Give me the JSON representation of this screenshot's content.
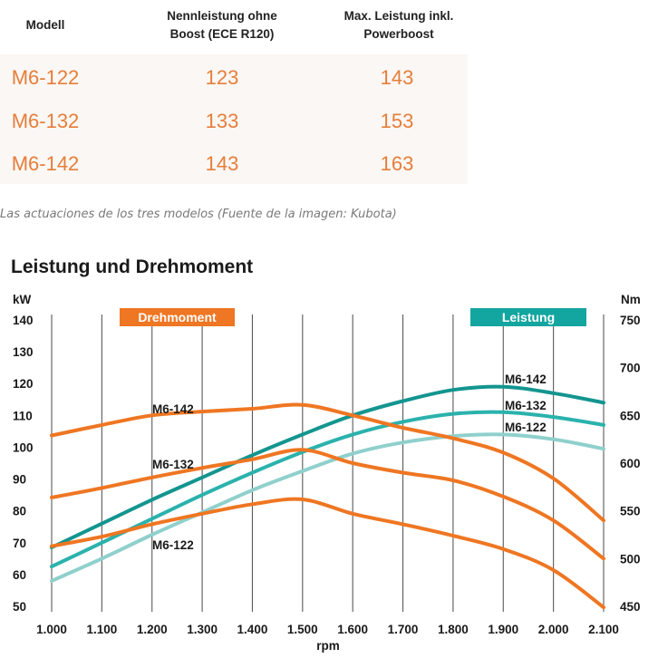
{
  "table": {
    "headers": [
      "Modell",
      "Nennleistung ohne Boost (ECE R120)",
      "Max. Leistung inkl. Powerboost"
    ],
    "header_lines": [
      [
        "Modell"
      ],
      [
        "Nennleistung ohne",
        "Boost (ECE R120)"
      ],
      [
        "Max. Leistung inkl.",
        "Powerboost"
      ]
    ],
    "rows": [
      [
        "M6-122",
        "123",
        "143"
      ],
      [
        "M6-132",
        "133",
        "153"
      ],
      [
        "M6-142",
        "143",
        "163"
      ]
    ]
  },
  "caption": "Las actuaciones de los tres modelos (Fuente de la imagen: Kubota)",
  "colors": {
    "torque": "#ef7622",
    "power_dark": "#13958f",
    "power_mid": "#2bb2ad",
    "power_light": "#8fd0cc",
    "value_text": "#e67e3a"
  },
  "chart_data": {
    "type": "line",
    "title": "Leistung und Drehmoment",
    "xlabel": "rpm",
    "ylabel_left": "kW",
    "ylabel_right": "Nm",
    "x": [
      1000,
      1100,
      1200,
      1300,
      1400,
      1500,
      1600,
      1700,
      1800,
      1900,
      2000,
      2100
    ],
    "x_tick_labels": [
      "1.000",
      "1.100",
      "1.200",
      "1.300",
      "1.400",
      "1.500",
      "1.600",
      "1.700",
      "1.800",
      "1.900",
      "2.000",
      "2.100"
    ],
    "xlim": [
      1000,
      2100
    ],
    "ylim_left": [
      50,
      140
    ],
    "y_left_ticks": [
      50,
      60,
      70,
      80,
      90,
      100,
      110,
      120,
      130,
      140
    ],
    "ylim_right": [
      450,
      750
    ],
    "y_right_ticks": [
      450,
      500,
      550,
      600,
      650,
      700,
      750
    ],
    "legend": [
      {
        "label": "Drehmoment",
        "color": "#ef7622",
        "placement": "top-left"
      },
      {
        "label": "Leistung",
        "color": "#13a5a0",
        "placement": "top-right"
      }
    ],
    "series": [
      {
        "name": "M6-142",
        "group": "Leistung",
        "axis": "left",
        "color": "#13958f",
        "label": "M6-142",
        "values": [
          68.5,
          76,
          83.5,
          90.5,
          97.5,
          104,
          110,
          114.5,
          118,
          119,
          117,
          114
        ]
      },
      {
        "name": "M6-132",
        "group": "Leistung",
        "axis": "left",
        "color": "#2bb2ad",
        "label": "M6-132",
        "values": [
          62.5,
          70,
          77.5,
          85,
          92,
          98.5,
          104,
          108,
          110.5,
          111,
          109.5,
          107
        ]
      },
      {
        "name": "M6-122",
        "group": "Leistung",
        "axis": "left",
        "color": "#8fd0cc",
        "label": "M6-122",
        "values": [
          58,
          65,
          72.5,
          79.5,
          86.5,
          92.5,
          98,
          101.5,
          103.5,
          104,
          102.5,
          99.5
        ]
      },
      {
        "name": "M6-142",
        "group": "Drehmoment",
        "axis": "right",
        "color": "#ef7622",
        "label": "M6-142",
        "values": [
          629,
          640,
          650,
          654,
          657,
          661,
          650,
          637,
          626,
          611,
          584,
          540
        ]
      },
      {
        "name": "M6-132",
        "group": "Drehmoment",
        "axis": "right",
        "color": "#ef7622",
        "label": "M6-132",
        "values": [
          564,
          574,
          585,
          595,
          604,
          614,
          600,
          590,
          582,
          565,
          540,
          500
        ]
      },
      {
        "name": "M6-122",
        "group": "Drehmoment",
        "axis": "right",
        "color": "#ef7622",
        "label": "M6-122",
        "values": [
          513,
          523,
          536,
          547,
          557,
          562,
          547,
          536,
          524,
          510,
          488,
          449
        ]
      }
    ]
  }
}
